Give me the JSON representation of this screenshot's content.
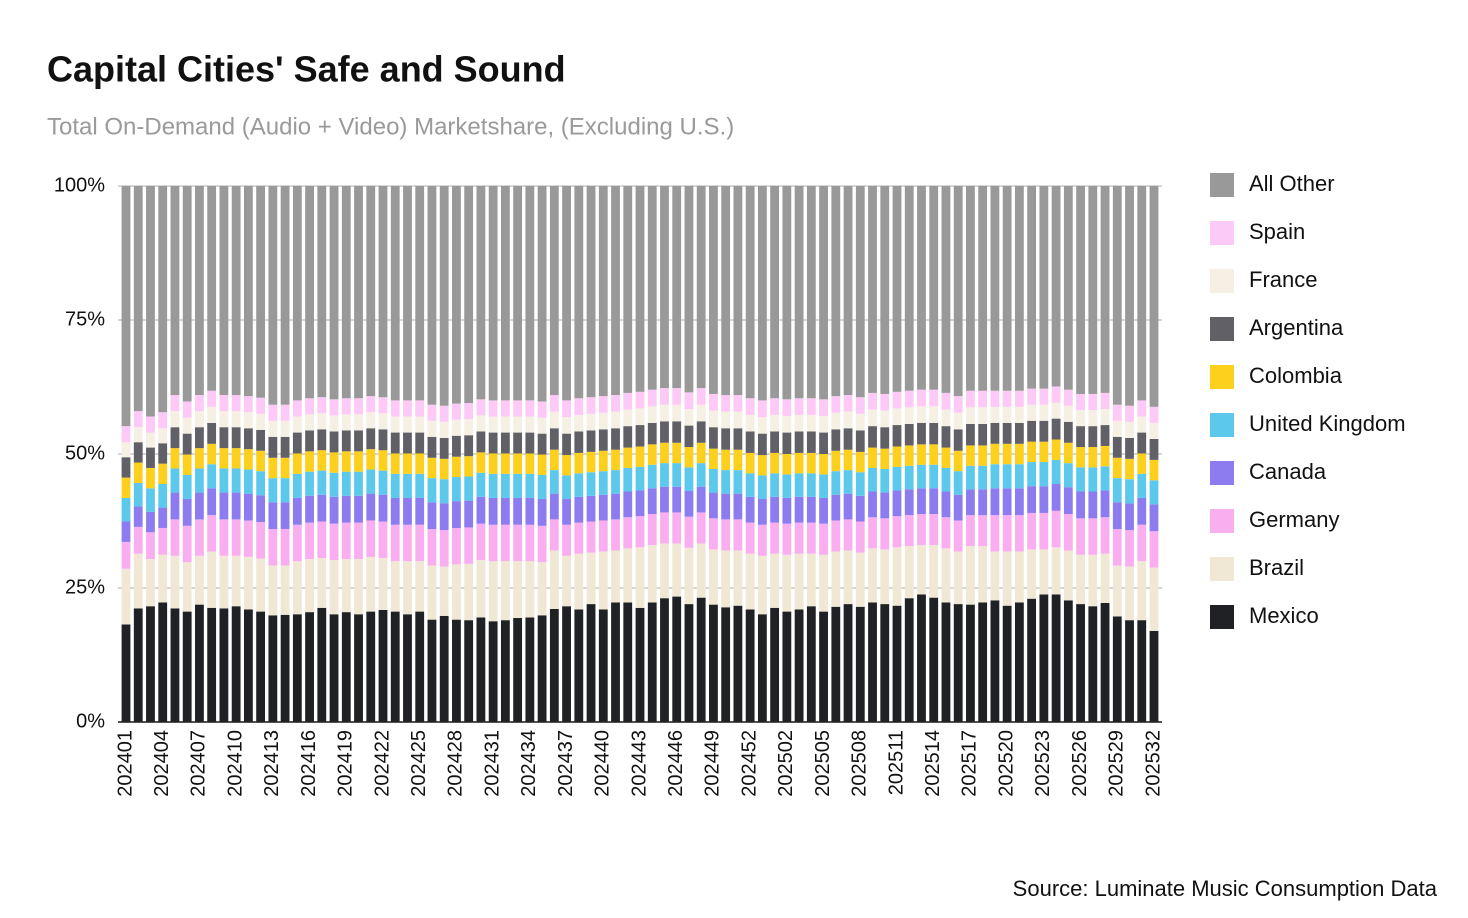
{
  "chart_data": {
    "type": "stacked_bar",
    "title": "Capital Cities' Safe and Sound",
    "subtitle": "Total On-Demand (Audio + Video) Marketshare, (Excluding U.S.)",
    "source": "Source: Luminate Music Consumption Data",
    "categories": [
      "202401",
      null,
      null,
      "202404",
      null,
      null,
      "202407",
      null,
      null,
      "202410",
      null,
      null,
      "202413",
      null,
      null,
      "202416",
      null,
      null,
      "202419",
      null,
      null,
      "202422",
      null,
      null,
      "202425",
      null,
      null,
      "202428",
      null,
      null,
      "202431",
      null,
      null,
      "202434",
      null,
      null,
      "202437",
      null,
      null,
      "202440",
      null,
      null,
      "202443",
      null,
      null,
      "202446",
      null,
      null,
      "202449",
      null,
      null,
      "202452",
      null,
      null,
      "202502",
      null,
      null,
      "202505",
      null,
      null,
      "202508",
      null,
      null,
      "202511",
      null,
      null,
      "202514",
      null,
      null,
      "202517",
      null,
      null,
      "202520",
      null,
      null,
      "202523",
      null,
      null,
      "202526",
      null,
      null,
      "202529",
      null,
      null,
      "202532"
    ],
    "ylim": [
      0,
      100
    ],
    "yticks": [
      {
        "value": 0,
        "label": "0%"
      },
      {
        "value": 25,
        "label": "25%"
      },
      {
        "value": 50,
        "label": "50%"
      },
      {
        "value": 75,
        "label": "75%"
      },
      {
        "value": 100,
        "label": "100%"
      }
    ],
    "grid": true,
    "legend": "right",
    "series": [
      {
        "name": "Mexico",
        "color": "#202124",
        "values": [
          18.2,
          21.2,
          21.6,
          22.3,
          21.2,
          20.6,
          21.9,
          21.3,
          21.2,
          21.6,
          21.0,
          20.6,
          19.9,
          20.0,
          20.1,
          20.5,
          21.3,
          20.1,
          20.5,
          20.1,
          20.6,
          20.9,
          20.6,
          20.1,
          20.6,
          19.1,
          19.8,
          19.1,
          19.0,
          19.5,
          18.8,
          19.0,
          19.4,
          19.5,
          19.9,
          21.1,
          21.6,
          21.0,
          22.0,
          21.0,
          22.3,
          22.3,
          21.3,
          22.3,
          23.1,
          23.4,
          22.0,
          23.2,
          21.9,
          21.4,
          21.7,
          21.0,
          20.1,
          21.3,
          20.6,
          21.0,
          21.6,
          20.6,
          21.5,
          22.0,
          21.5,
          22.3,
          22.0,
          21.7,
          23.1,
          23.8,
          23.2,
          22.3,
          22.0,
          21.9,
          22.3,
          22.7,
          21.7,
          22.3,
          23.0,
          23.8,
          23.8,
          22.7,
          22.0,
          21.6,
          22.2,
          19.7,
          19.0,
          19.0,
          17.0
        ]
      },
      {
        "name": "Brazil",
        "color": "#f0e8d4",
        "values": [
          10.4,
          10.2,
          8.8,
          8.9,
          9.8,
          9.2,
          9.1,
          10.5,
          9.8,
          9.4,
          9.8,
          9.9,
          9.3,
          9.2,
          9.9,
          9.9,
          9.3,
          10.1,
          9.9,
          10.3,
          10.2,
          9.7,
          9.4,
          9.9,
          9.4,
          10.1,
          9.2,
          10.3,
          10.5,
          10.7,
          11.2,
          11.0,
          10.6,
          10.5,
          9.9,
          10.9,
          9.4,
          10.4,
          9.6,
          10.8,
          9.7,
          10.1,
          11.3,
          10.7,
          10.2,
          9.9,
          10.5,
          10.1,
          10.3,
          10.6,
          10.3,
          10.4,
          10.9,
          10.1,
          10.6,
          10.4,
          9.8,
          10.6,
          10.3,
          10.0,
          10.1,
          10.1,
          10.2,
          10.9,
          9.7,
          9.2,
          9.8,
          10.1,
          9.8,
          10.9,
          10.5,
          9.1,
          10.1,
          9.5,
          9.2,
          8.4,
          8.8,
          9.3,
          9.2,
          9.6,
          9.2,
          9.5,
          10.0,
          11.0,
          11.8
        ]
      },
      {
        "name": "Germany",
        "color": "#f9aef0",
        "values": [
          5.0,
          5.0,
          5.0,
          5.0,
          6.8,
          6.8,
          6.8,
          6.8,
          6.8,
          6.8,
          6.8,
          6.8,
          6.8,
          6.8,
          6.8,
          6.8,
          6.8,
          6.8,
          6.8,
          6.8,
          6.8,
          6.8,
          6.8,
          6.8,
          6.8,
          6.8,
          6.8,
          6.8,
          6.8,
          6.8,
          6.8,
          6.8,
          6.8,
          6.8,
          6.8,
          5.8,
          5.8,
          5.8,
          5.8,
          5.8,
          5.8,
          5.8,
          5.8,
          5.8,
          5.8,
          5.8,
          5.8,
          5.8,
          5.8,
          5.8,
          5.8,
          5.8,
          5.8,
          5.8,
          5.8,
          5.8,
          5.8,
          5.8,
          5.8,
          5.8,
          5.8,
          5.8,
          5.8,
          5.8,
          5.8,
          5.8,
          5.8,
          5.8,
          5.8,
          5.8,
          5.8,
          6.8,
          6.8,
          6.8,
          6.8,
          6.8,
          6.8,
          6.8,
          6.8,
          6.8,
          6.8,
          6.8,
          6.8,
          6.8,
          6.8
        ]
      },
      {
        "name": "Canada",
        "color": "#8c7cf0",
        "values": [
          3.8,
          3.8,
          3.8,
          3.8,
          5.0,
          5.0,
          5.0,
          5.0,
          5.0,
          5.0,
          5.0,
          5.0,
          5.0,
          5.0,
          5.0,
          5.0,
          5.0,
          5.0,
          5.0,
          5.0,
          5.0,
          5.0,
          5.0,
          5.0,
          5.0,
          5.0,
          5.0,
          5.0,
          5.0,
          5.0,
          5.0,
          5.0,
          5.0,
          5.0,
          5.0,
          4.8,
          4.8,
          4.8,
          4.8,
          4.8,
          4.8,
          4.8,
          4.8,
          4.8,
          4.8,
          4.8,
          4.8,
          4.8,
          4.8,
          4.8,
          4.8,
          4.8,
          4.8,
          4.8,
          4.8,
          4.8,
          4.8,
          4.8,
          4.8,
          4.8,
          4.8,
          4.8,
          4.8,
          4.8,
          4.8,
          4.8,
          4.8,
          4.8,
          4.8,
          4.8,
          4.8,
          5.0,
          5.0,
          5.0,
          5.0,
          5.0,
          5.0,
          5.0,
          5.0,
          5.0,
          5.0,
          5.0,
          5.0,
          5.0,
          5.0
        ]
      },
      {
        "name": "United Kingdom",
        "color": "#5cc8ec",
        "values": [
          4.4,
          4.4,
          4.4,
          4.4,
          4.5,
          4.5,
          4.5,
          4.5,
          4.5,
          4.5,
          4.5,
          4.5,
          4.5,
          4.5,
          4.5,
          4.5,
          4.5,
          4.5,
          4.5,
          4.5,
          4.5,
          4.5,
          4.5,
          4.5,
          4.5,
          4.5,
          4.5,
          4.5,
          4.5,
          4.5,
          4.5,
          4.5,
          4.5,
          4.5,
          4.5,
          4.4,
          4.4,
          4.4,
          4.4,
          4.4,
          4.4,
          4.4,
          4.4,
          4.4,
          4.4,
          4.4,
          4.4,
          4.4,
          4.4,
          4.4,
          4.4,
          4.4,
          4.4,
          4.4,
          4.4,
          4.4,
          4.4,
          4.4,
          4.4,
          4.4,
          4.4,
          4.4,
          4.4,
          4.4,
          4.4,
          4.4,
          4.4,
          4.4,
          4.4,
          4.4,
          4.4,
          4.5,
          4.5,
          4.5,
          4.5,
          4.5,
          4.5,
          4.5,
          4.5,
          4.5,
          4.5,
          4.5,
          4.5,
          4.5,
          4.5
        ]
      },
      {
        "name": "Colombia",
        "color": "#fcd01c",
        "values": [
          3.8,
          3.8,
          3.8,
          3.8,
          3.8,
          3.8,
          3.8,
          3.8,
          3.8,
          3.8,
          3.8,
          3.8,
          3.8,
          3.8,
          3.8,
          3.8,
          3.8,
          3.8,
          3.8,
          3.8,
          3.8,
          3.8,
          3.8,
          3.8,
          3.8,
          3.8,
          3.8,
          3.8,
          3.8,
          3.8,
          3.8,
          3.8,
          3.8,
          3.8,
          3.8,
          3.8,
          3.8,
          3.8,
          3.8,
          3.8,
          3.8,
          3.8,
          3.8,
          3.8,
          3.8,
          3.8,
          3.8,
          3.8,
          3.8,
          3.8,
          3.8,
          3.8,
          3.8,
          3.8,
          3.8,
          3.8,
          3.8,
          3.8,
          3.8,
          3.8,
          3.8,
          3.8,
          3.8,
          3.8,
          3.8,
          3.8,
          3.8,
          3.8,
          3.8,
          3.8,
          3.8,
          3.8,
          3.8,
          3.8,
          3.8,
          3.8,
          3.8,
          3.8,
          3.8,
          3.8,
          3.8,
          3.8,
          3.8,
          3.8,
          3.8
        ]
      },
      {
        "name": "Argentina",
        "color": "#606066",
        "values": [
          3.8,
          3.8,
          3.8,
          3.8,
          3.9,
          3.9,
          3.9,
          3.9,
          3.9,
          3.9,
          3.9,
          3.9,
          3.9,
          3.9,
          3.9,
          3.9,
          3.9,
          3.9,
          3.9,
          3.9,
          3.9,
          3.9,
          3.9,
          3.9,
          3.9,
          3.9,
          3.9,
          3.9,
          3.9,
          3.9,
          3.9,
          3.9,
          3.9,
          3.9,
          3.9,
          4.0,
          4.0,
          4.0,
          4.0,
          4.0,
          4.0,
          4.0,
          4.0,
          4.0,
          4.0,
          4.0,
          4.0,
          4.0,
          4.0,
          4.0,
          4.0,
          4.0,
          4.0,
          4.0,
          4.0,
          4.0,
          4.0,
          4.0,
          4.0,
          4.0,
          4.0,
          4.0,
          4.0,
          4.0,
          4.0,
          4.0,
          4.0,
          4.0,
          4.0,
          4.0,
          4.0,
          3.9,
          3.9,
          3.9,
          3.9,
          3.9,
          3.9,
          3.9,
          3.9,
          3.9,
          3.9,
          3.9,
          3.9,
          3.9,
          3.9
        ]
      },
      {
        "name": "France",
        "color": "#f5f0e3",
        "values": [
          2.8,
          2.8,
          2.8,
          2.8,
          3.0,
          3.0,
          3.0,
          3.0,
          3.0,
          3.0,
          3.0,
          3.0,
          3.0,
          3.0,
          3.0,
          3.0,
          3.0,
          3.0,
          3.0,
          3.0,
          3.0,
          3.0,
          3.0,
          3.0,
          3.0,
          3.0,
          3.0,
          3.0,
          3.0,
          3.0,
          3.0,
          3.0,
          3.0,
          3.0,
          3.0,
          3.1,
          3.1,
          3.1,
          3.1,
          3.1,
          3.1,
          3.1,
          3.1,
          3.1,
          3.1,
          3.1,
          3.1,
          3.1,
          3.1,
          3.1,
          3.1,
          3.1,
          3.1,
          3.1,
          3.1,
          3.1,
          3.1,
          3.1,
          3.1,
          3.1,
          3.1,
          3.1,
          3.1,
          3.1,
          3.1,
          3.1,
          3.1,
          3.1,
          3.1,
          3.1,
          3.1,
          3.0,
          3.0,
          3.0,
          3.0,
          3.0,
          3.0,
          3.0,
          3.0,
          3.0,
          3.0,
          3.0,
          3.0,
          3.0,
          3.0
        ]
      },
      {
        "name": "Spain",
        "color": "#fdc9f6",
        "values": [
          3.0,
          3.0,
          3.0,
          3.0,
          3.0,
          3.0,
          3.0,
          3.0,
          3.0,
          3.0,
          3.0,
          3.0,
          3.0,
          3.0,
          3.0,
          3.0,
          3.0,
          3.0,
          3.0,
          3.0,
          3.0,
          3.0,
          3.0,
          3.0,
          3.0,
          3.0,
          3.0,
          3.0,
          3.0,
          3.0,
          3.0,
          3.0,
          3.0,
          3.0,
          3.0,
          3.1,
          3.1,
          3.1,
          3.1,
          3.1,
          3.1,
          3.1,
          3.1,
          3.1,
          3.1,
          3.1,
          3.1,
          3.1,
          3.1,
          3.1,
          3.1,
          3.1,
          3.1,
          3.1,
          3.1,
          3.1,
          3.1,
          3.1,
          3.1,
          3.1,
          3.1,
          3.1,
          3.1,
          3.1,
          3.1,
          3.1,
          3.1,
          3.1,
          3.1,
          3.1,
          3.1,
          3.0,
          3.0,
          3.0,
          3.0,
          3.0,
          3.0,
          3.0,
          3.0,
          3.0,
          3.0,
          3.0,
          3.0,
          3.0,
          3.0
        ]
      },
      {
        "name": "All Other",
        "color": "#999999",
        "values": [
          44.8,
          42.0,
          43.0,
          42.2,
          39.0,
          40.2,
          39.0,
          38.2,
          39.0,
          39.0,
          39.2,
          39.5,
          40.8,
          40.8,
          40.0,
          39.6,
          39.4,
          39.8,
          39.6,
          39.6,
          39.2,
          39.4,
          40.0,
          40.0,
          40.0,
          40.8,
          41.0,
          40.6,
          40.5,
          39.8,
          40.0,
          40.0,
          40.0,
          40.0,
          40.2,
          39.0,
          40.0,
          39.6,
          39.4,
          39.2,
          39.0,
          38.6,
          38.4,
          38.0,
          37.7,
          37.7,
          38.5,
          37.7,
          38.8,
          39.0,
          39.0,
          39.6,
          40.0,
          39.6,
          39.8,
          39.6,
          39.6,
          39.8,
          39.2,
          39.0,
          39.4,
          38.6,
          38.8,
          38.4,
          38.2,
          38.0,
          38.0,
          38.6,
          39.2,
          38.2,
          38.2,
          38.2,
          38.2,
          38.2,
          37.8,
          37.8,
          37.4,
          38.0,
          38.8,
          38.8,
          38.6,
          40.8,
          41.0,
          40.0,
          41.2
        ]
      }
    ]
  }
}
